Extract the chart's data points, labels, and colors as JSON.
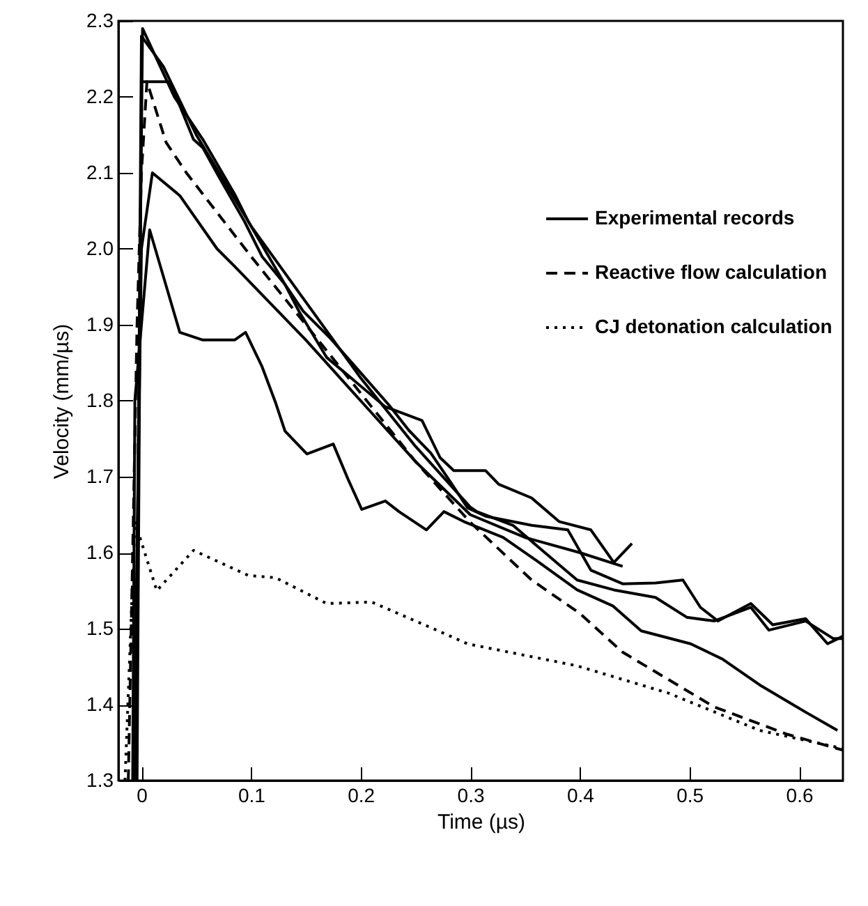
{
  "chart_data": {
    "type": "line",
    "xlabel": "Time (µs)",
    "ylabel": "Velocity (mm/µs)",
    "xlim": [
      -0.021,
      0.64
    ],
    "ylim": [
      1.3,
      2.3
    ],
    "xticks": [
      0,
      0.1,
      0.2,
      0.3,
      0.4,
      0.5,
      0.6
    ],
    "yticks": [
      1.3,
      1.4,
      1.5,
      1.6,
      1.7,
      1.8,
      1.9,
      {
        "value": 2,
        "label": "2.0"
      },
      2.1,
      2.2,
      2.3
    ],
    "grid": false,
    "legend": "right",
    "marker": "none",
    "series": [
      {
        "name": "Experimental records",
        "color": "#000000",
        "line_style": "solid",
        "x": [
          -0.008,
          -0.006,
          0.0075,
          0.035,
          0.056,
          0.085,
          0.095,
          0.11,
          0.1225,
          0.131,
          0.151,
          0.175,
          0.189,
          0.201,
          0.2225,
          0.235,
          0.26,
          0.276,
          0.294,
          0.33,
          0.36,
          0.3975,
          0.43,
          0.456,
          0.501,
          0.53,
          0.564,
          0.606,
          0.635
        ],
        "values": [
          1.3,
          1.8,
          2.025,
          1.89,
          1.88,
          1.88,
          1.89,
          1.845,
          1.797,
          1.76,
          1.73,
          1.743,
          1.695,
          1.657,
          1.668,
          1.654,
          1.63,
          1.654,
          1.641,
          1.62,
          1.59,
          1.551,
          1.53,
          1.497,
          1.48,
          1.46,
          1.426,
          1.39,
          1.366
        ]
      },
      {
        "color": "#000000",
        "line_style": "solid",
        "x": [
          -0.007,
          0.0,
          0.01,
          0.035,
          0.069,
          0.085,
          0.15,
          0.2,
          0.25,
          0.3,
          0.35,
          0.4,
          0.439
        ],
        "values": [
          1.3,
          2.0,
          2.1,
          2.07,
          2.0,
          1.977,
          1.88,
          1.8,
          1.72,
          1.65,
          1.62,
          1.6,
          1.582
        ]
      },
      {
        "color": "#000000",
        "line_style": "solid",
        "x": [
          -0.006,
          0.001,
          0.03,
          0.056,
          0.085,
          0.0975,
          0.131,
          0.144,
          0.169,
          0.2225,
          0.256,
          0.2725,
          0.285,
          0.314,
          0.326,
          0.356,
          0.381,
          0.41,
          0.431,
          0.4475
        ],
        "values": [
          1.3,
          2.29,
          2.2,
          2.144,
          2.072,
          2.036,
          1.953,
          1.917,
          1.857,
          1.792,
          1.774,
          1.725,
          1.708,
          1.708,
          1.69,
          1.672,
          1.641,
          1.63,
          1.587,
          1.612
        ]
      },
      {
        "color": "#000000",
        "line_style": "solid",
        "x": [
          -0.005,
          0.0,
          0.02,
          0.05,
          0.1,
          0.15,
          0.2,
          0.25,
          0.3,
          0.306,
          0.339,
          0.364,
          0.3975,
          0.431,
          0.469,
          0.4975,
          0.5225,
          0.556,
          0.5725,
          0.606,
          0.631,
          0.64
        ],
        "values": [
          1.3,
          2.28,
          2.24,
          2.15,
          2.03,
          1.93,
          1.83,
          1.74,
          1.66,
          1.654,
          1.636,
          1.605,
          1.564,
          1.551,
          1.541,
          1.515,
          1.51,
          1.528,
          1.498,
          1.51,
          1.487,
          1.487
        ]
      },
      {
        "color": "#000000",
        "line_style": "solid",
        "x": [
          -0.004,
          0.0,
          0.01,
          0.026,
          0.0475,
          0.056,
          0.0725,
          0.094,
          0.11,
          0.131,
          0.1475,
          0.1725,
          0.226,
          0.244,
          0.264,
          0.281,
          0.2975,
          0.314,
          0.356,
          0.389,
          0.41,
          0.439,
          0.469,
          0.494,
          0.51,
          0.526,
          0.556,
          0.576,
          0.606,
          0.626,
          0.64
        ],
        "values": [
          1.3,
          2.22,
          2.22,
          2.22,
          2.144,
          2.133,
          2.09,
          2.036,
          1.99,
          1.953,
          1.918,
          1.882,
          1.794,
          1.761,
          1.731,
          1.695,
          1.659,
          1.648,
          1.636,
          1.63,
          1.577,
          1.559,
          1.56,
          1.564,
          1.528,
          1.51,
          1.533,
          1.505,
          1.513,
          1.48,
          1.49
        ]
      },
      {
        "name": "Reactive flow calculation",
        "color": "#000000",
        "line_style": "dashed",
        "x": [
          -0.012,
          -0.008,
          -0.004,
          0.0,
          0.005,
          0.0225,
          0.041,
          0.1,
          0.15,
          0.2,
          0.25,
          0.3,
          0.356,
          0.4,
          0.439,
          0.5225,
          0.589,
          0.64
        ],
        "values": [
          1.3,
          1.6,
          1.9,
          2.1,
          2.22,
          2.14,
          2.1,
          1.99,
          1.9,
          1.81,
          1.72,
          1.64,
          1.564,
          1.52,
          1.469,
          1.397,
          1.361,
          1.34
        ]
      },
      {
        "name": "CJ detonation calculation",
        "color": "#000000",
        "line_style": "dotted",
        "x": [
          -0.015,
          -0.006,
          0.014,
          0.0475,
          0.0975,
          0.1225,
          0.169,
          0.21,
          0.2725,
          0.2975,
          0.3975,
          0.481,
          0.564,
          0.631,
          0.64
        ],
        "values": [
          1.3,
          1.641,
          1.55,
          1.603,
          1.57,
          1.567,
          1.533,
          1.535,
          1.496,
          1.48,
          1.451,
          1.415,
          1.366,
          1.345,
          1.342
        ]
      }
    ]
  }
}
